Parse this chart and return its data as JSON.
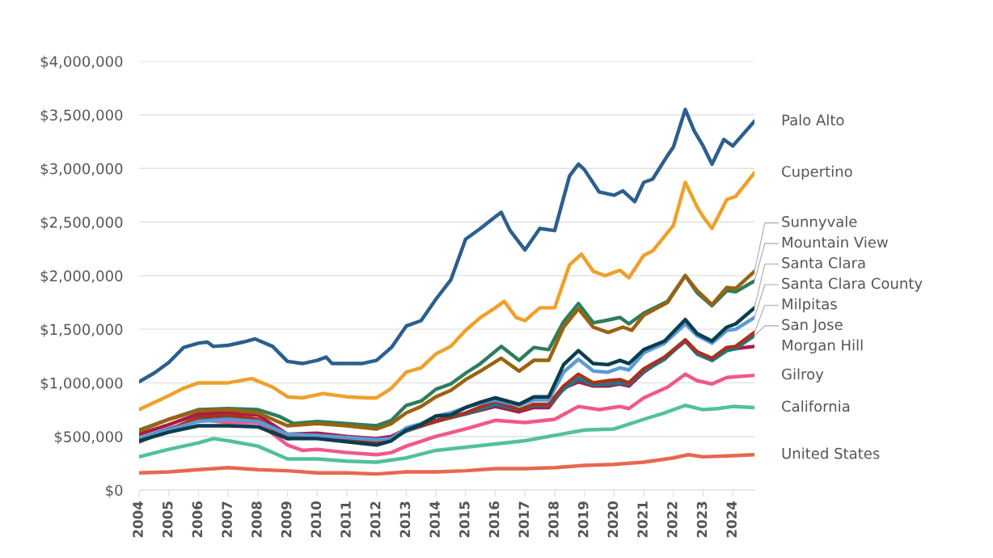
{
  "chart_data": {
    "type": "line",
    "xlim": [
      2004,
      2024.73
    ],
    "ylim": [
      0,
      4000000
    ],
    "xticks": [
      2004,
      2005,
      2006,
      2007,
      2008,
      2009,
      2010,
      2011,
      2012,
      2013,
      2014,
      2015,
      2016,
      2017,
      2018,
      2019,
      2020,
      2021,
      2022,
      2023,
      2024
    ],
    "yticks": [
      {
        "value": 0,
        "label": "$0"
      },
      {
        "value": 500000,
        "label": "$500,000"
      },
      {
        "value": 1000000,
        "label": "$1,000,000"
      },
      {
        "value": 1500000,
        "label": "$1,500,000"
      },
      {
        "value": 2000000,
        "label": "$2,000,000"
      },
      {
        "value": 2500000,
        "label": "$2,500,000"
      },
      {
        "value": 3000000,
        "label": "$3,000,000"
      },
      {
        "value": 3500000,
        "label": "$3,500,000"
      },
      {
        "value": 4000000,
        "label": "$4,000,000"
      }
    ],
    "grid": "y",
    "legend": false,
    "marker": "none",
    "line_style": "solid",
    "series": [
      {
        "name": "Palo Alto",
        "color": "#2b5f8e",
        "x": [
          2004,
          2004.5,
          2005,
          2005.5,
          2006,
          2006.3,
          2006.5,
          2007,
          2007.5,
          2007.9,
          2008.5,
          2009,
          2009.5,
          2010,
          2010.3,
          2010.5,
          2011,
          2011.5,
          2012,
          2012.5,
          2013,
          2013.5,
          2014,
          2014.5,
          2015,
          2015.5,
          2016,
          2016.2,
          2016.5,
          2017,
          2017.5,
          2018,
          2018.5,
          2018.8,
          2019,
          2019.5,
          2020,
          2020.3,
          2020.7,
          2021,
          2021.3,
          2021.8,
          2022,
          2022.4,
          2022.7,
          2023,
          2023.3,
          2023.7,
          2024,
          2024.73
        ],
        "values": [
          1010000,
          1090000,
          1190000,
          1330000,
          1370000,
          1380000,
          1340000,
          1350000,
          1380000,
          1410000,
          1340000,
          1200000,
          1180000,
          1210000,
          1240000,
          1180000,
          1180000,
          1180000,
          1210000,
          1330000,
          1530000,
          1580000,
          1780000,
          1960000,
          2340000,
          2440000,
          2550000,
          2590000,
          2420000,
          2240000,
          2440000,
          2420000,
          2930000,
          3040000,
          2990000,
          2780000,
          2750000,
          2790000,
          2690000,
          2870000,
          2900000,
          3120000,
          3200000,
          3550000,
          3350000,
          3210000,
          3040000,
          3270000,
          3210000,
          3440000
        ]
      },
      {
        "name": "Cupertino",
        "color": "#f0a02a",
        "x": [
          2004,
          2005,
          2005.5,
          2006,
          2007,
          2007.8,
          2008.5,
          2009,
          2009.5,
          2010.2,
          2011,
          2011.7,
          2012,
          2012.5,
          2013,
          2013.5,
          2014,
          2014.5,
          2015,
          2015.5,
          2016,
          2016.3,
          2016.7,
          2017,
          2017.5,
          2018,
          2018.5,
          2018.9,
          2019.3,
          2019.7,
          2020.2,
          2020.5,
          2021,
          2021.3,
          2022,
          2022.4,
          2022.8,
          2023,
          2023.3,
          2023.8,
          2024.1,
          2024.73
        ],
        "values": [
          750000,
          880000,
          950000,
          1000000,
          1000000,
          1040000,
          960000,
          870000,
          860000,
          900000,
          870000,
          860000,
          860000,
          950000,
          1100000,
          1140000,
          1270000,
          1340000,
          1490000,
          1610000,
          1700000,
          1760000,
          1610000,
          1580000,
          1700000,
          1700000,
          2100000,
          2200000,
          2040000,
          2000000,
          2050000,
          1980000,
          2190000,
          2230000,
          2470000,
          2870000,
          2640000,
          2550000,
          2440000,
          2710000,
          2740000,
          2960000
        ]
      },
      {
        "name": "Sunnyvale",
        "color": "#9a6210",
        "x": [
          2004,
          2005,
          2006,
          2007,
          2008,
          2009,
          2010,
          2011,
          2012,
          2012.5,
          2013,
          2013.5,
          2014,
          2014.5,
          2015,
          2015.5,
          2016.2,
          2016.8,
          2017.3,
          2017.8,
          2018.3,
          2018.8,
          2019.3,
          2019.8,
          2020.3,
          2020.6,
          2021,
          2021.8,
          2022.4,
          2022.8,
          2023.3,
          2023.8,
          2024.1,
          2024.73
        ],
        "values": [
          550000,
          660000,
          740000,
          750000,
          720000,
          600000,
          620000,
          600000,
          570000,
          620000,
          720000,
          780000,
          870000,
          930000,
          1030000,
          1110000,
          1230000,
          1110000,
          1210000,
          1210000,
          1520000,
          1690000,
          1520000,
          1470000,
          1520000,
          1490000,
          1630000,
          1750000,
          2000000,
          1860000,
          1730000,
          1890000,
          1880000,
          2040000
        ]
      },
      {
        "name": "Mountain View",
        "color": "#2e7d5c",
        "x": [
          2004,
          2005,
          2006,
          2007,
          2008,
          2008.7,
          2009.2,
          2010,
          2010.5,
          2011.5,
          2012,
          2012.5,
          2013,
          2013.5,
          2014,
          2014.5,
          2015,
          2015.5,
          2016.2,
          2016.8,
          2017.3,
          2017.8,
          2018.3,
          2018.8,
          2019.3,
          2019.7,
          2020.2,
          2020.5,
          2021,
          2021.8,
          2022.4,
          2022.8,
          2023.3,
          2023.8,
          2024.1,
          2024.73
        ],
        "values": [
          560000,
          660000,
          750000,
          760000,
          750000,
          690000,
          620000,
          640000,
          630000,
          610000,
          600000,
          650000,
          790000,
          830000,
          940000,
          990000,
          1090000,
          1180000,
          1340000,
          1210000,
          1330000,
          1310000,
          1570000,
          1740000,
          1560000,
          1580000,
          1610000,
          1550000,
          1650000,
          1760000,
          2000000,
          1840000,
          1720000,
          1860000,
          1850000,
          1950000
        ]
      },
      {
        "name": "Santa Clara",
        "color": "#0b3d4f",
        "x": [
          2004,
          2005,
          2006,
          2007,
          2008,
          2009,
          2010,
          2011,
          2012,
          2012.5,
          2013,
          2013.5,
          2014,
          2014.5,
          2015,
          2015.5,
          2016,
          2016.8,
          2017.3,
          2017.8,
          2018.3,
          2018.8,
          2019.3,
          2019.8,
          2020.2,
          2020.5,
          2021,
          2021.7,
          2022.4,
          2022.8,
          2023.3,
          2023.8,
          2024.1,
          2024.73
        ],
        "values": [
          460000,
          540000,
          600000,
          600000,
          590000,
          480000,
          480000,
          450000,
          420000,
          460000,
          560000,
          610000,
          690000,
          700000,
          770000,
          820000,
          860000,
          800000,
          870000,
          870000,
          1170000,
          1300000,
          1180000,
          1170000,
          1210000,
          1180000,
          1310000,
          1390000,
          1590000,
          1460000,
          1390000,
          1520000,
          1550000,
          1700000
        ]
      },
      {
        "name": "Santa Clara County",
        "color": "#5b9bd5",
        "x": [
          2004,
          2005,
          2006,
          2007,
          2008,
          2009,
          2010,
          2011,
          2012,
          2012.5,
          2013,
          2013.5,
          2014,
          2014.5,
          2015,
          2015.5,
          2016,
          2016.8,
          2017.3,
          2017.8,
          2018.3,
          2018.8,
          2019.3,
          2019.8,
          2020.2,
          2020.5,
          2021,
          2021.7,
          2022.4,
          2022.8,
          2023.3,
          2023.8,
          2024.1,
          2024.73
        ],
        "values": [
          480000,
          560000,
          640000,
          660000,
          640000,
          520000,
          510000,
          490000,
          470000,
          480000,
          580000,
          620000,
          690000,
          720000,
          770000,
          810000,
          840000,
          790000,
          840000,
          840000,
          1100000,
          1220000,
          1110000,
          1100000,
          1140000,
          1120000,
          1280000,
          1370000,
          1550000,
          1440000,
          1370000,
          1490000,
          1500000,
          1610000
        ]
      },
      {
        "name": "Milpitas",
        "color": "#a8321e",
        "x": [
          2004,
          2005,
          2006,
          2007,
          2008,
          2009,
          2010,
          2011,
          2012,
          2012.5,
          2013,
          2014,
          2015,
          2016,
          2016.8,
          2017.3,
          2017.8,
          2018.3,
          2018.8,
          2019.3,
          2019.8,
          2020.2,
          2020.5,
          2021,
          2021.7,
          2022.4,
          2022.8,
          2023.3,
          2023.8,
          2024.1,
          2024.73
        ],
        "values": [
          450000,
          560000,
          680000,
          700000,
          660000,
          480000,
          500000,
          470000,
          440000,
          470000,
          560000,
          640000,
          720000,
          830000,
          750000,
          800000,
          800000,
          970000,
          1080000,
          1000000,
          1020000,
          1030000,
          1000000,
          1130000,
          1240000,
          1400000,
          1290000,
          1230000,
          1330000,
          1340000,
          1470000
        ]
      },
      {
        "name": "San Jose",
        "color": "#177a8c",
        "x": [
          2004,
          2005,
          2006,
          2007,
          2008,
          2009,
          2010,
          2011,
          2012,
          2012.5,
          2013,
          2014,
          2015,
          2016,
          2016.8,
          2017.3,
          2017.8,
          2018.3,
          2018.8,
          2019.3,
          2019.8,
          2020.2,
          2020.5,
          2021,
          2021.7,
          2022.4,
          2022.8,
          2023.3,
          2023.8,
          2024.1,
          2024.73
        ],
        "values": [
          480000,
          570000,
          650000,
          670000,
          650000,
          510000,
          500000,
          480000,
          450000,
          480000,
          550000,
          640000,
          710000,
          800000,
          750000,
          790000,
          790000,
          940000,
          1040000,
          980000,
          990000,
          1000000,
          990000,
          1110000,
          1220000,
          1400000,
          1270000,
          1210000,
          1300000,
          1320000,
          1440000
        ]
      },
      {
        "name": "Morgan Hill",
        "color": "#ad1848",
        "x": [
          2004,
          2005,
          2006,
          2007,
          2008,
          2009,
          2010,
          2011,
          2012,
          2012.5,
          2013,
          2014,
          2015,
          2016,
          2016.8,
          2017.3,
          2017.8,
          2018.3,
          2018.8,
          2019.3,
          2019.8,
          2020.2,
          2020.5,
          2021,
          2021.7,
          2022.4,
          2022.8,
          2023.3,
          2023.8,
          2024.1,
          2024.73
        ],
        "values": [
          520000,
          610000,
          710000,
          720000,
          700000,
          520000,
          530000,
          500000,
          480000,
          500000,
          570000,
          650000,
          710000,
          780000,
          730000,
          770000,
          770000,
          950000,
          1010000,
          970000,
          970000,
          990000,
          970000,
          1100000,
          1230000,
          1390000,
          1270000,
          1210000,
          1310000,
          1320000,
          1340000
        ]
      },
      {
        "name": "Gilroy",
        "color": "#f0588a",
        "x": [
          2004,
          2005,
          2006,
          2007,
          2008,
          2009,
          2009.5,
          2010,
          2011,
          2012,
          2012.5,
          2013,
          2014,
          2015,
          2016,
          2017,
          2018,
          2018.8,
          2019.5,
          2020.2,
          2020.5,
          2021,
          2021.8,
          2022.4,
          2022.8,
          2023.3,
          2023.8,
          2024.73
        ],
        "values": [
          460000,
          550000,
          660000,
          630000,
          630000,
          420000,
          370000,
          380000,
          350000,
          330000,
          350000,
          410000,
          500000,
          570000,
          650000,
          630000,
          660000,
          780000,
          750000,
          780000,
          760000,
          860000,
          960000,
          1080000,
          1020000,
          990000,
          1050000,
          1070000
        ]
      },
      {
        "name": "California",
        "color": "#52c19a",
        "x": [
          2004,
          2005,
          2006,
          2006.5,
          2007,
          2008,
          2009,
          2010,
          2011,
          2012,
          2013,
          2014,
          2015,
          2016,
          2017,
          2018,
          2019,
          2020,
          2021,
          2021.7,
          2022.4,
          2023,
          2023.5,
          2024,
          2024.73
        ],
        "values": [
          310000,
          380000,
          440000,
          480000,
          460000,
          410000,
          290000,
          290000,
          270000,
          260000,
          300000,
          370000,
          400000,
          430000,
          460000,
          510000,
          560000,
          570000,
          660000,
          720000,
          790000,
          750000,
          760000,
          780000,
          770000
        ]
      },
      {
        "name": "United States",
        "color": "#e8674f",
        "x": [
          2004,
          2005,
          2006,
          2007,
          2008,
          2009,
          2010,
          2011,
          2012,
          2013,
          2014,
          2015,
          2016,
          2017,
          2018,
          2019,
          2020,
          2021,
          2022,
          2022.5,
          2023,
          2024,
          2024.73
        ],
        "values": [
          160000,
          170000,
          190000,
          210000,
          190000,
          180000,
          160000,
          160000,
          150000,
          170000,
          170000,
          180000,
          200000,
          200000,
          210000,
          230000,
          240000,
          260000,
          300000,
          330000,
          310000,
          320000,
          330000
        ]
      }
    ]
  }
}
